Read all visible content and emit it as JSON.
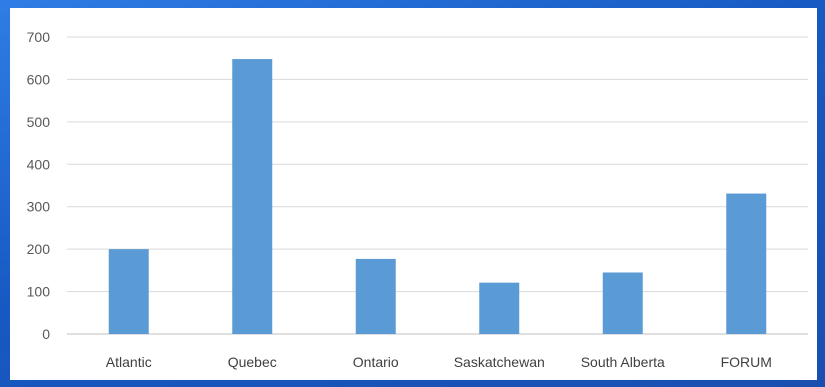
{
  "chart_data": {
    "type": "bar",
    "title": "",
    "xlabel": "",
    "ylabel": "",
    "categories": [
      "Atlantic",
      "Quebec",
      "Ontario",
      "Saskatchewan",
      "South Alberta",
      "FORUM"
    ],
    "values": [
      200,
      648,
      177,
      121,
      145,
      331
    ],
    "ylim": [
      0,
      700
    ],
    "yticks": [
      "0",
      "100",
      "200",
      "300",
      "400",
      "500",
      "600",
      "700"
    ],
    "grid": true,
    "legend": "none",
    "bar_color": "#5b9bd5"
  }
}
